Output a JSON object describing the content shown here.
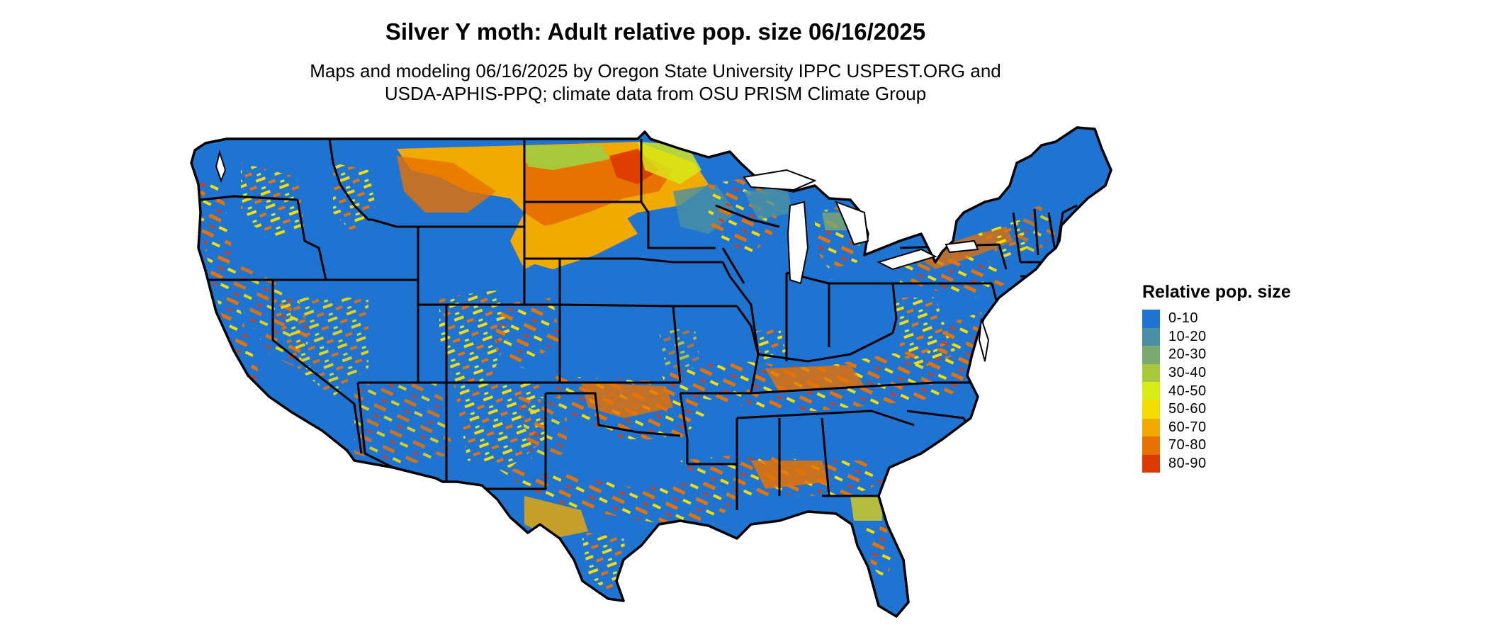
{
  "header": {
    "title": "Silver Y moth: Adult relative pop. size 06/16/2025",
    "subtitle_line1": "Maps and modeling 06/16/2025 by Oregon State University IPPC USPEST.ORG and",
    "subtitle_line2": "USDA-APHIS-PPQ; climate data from OSU PRISM Climate Group"
  },
  "legend": {
    "title": "Relative pop. size",
    "items": [
      {
        "label": "0-10",
        "color": "#1e74d0"
      },
      {
        "label": "10-20",
        "color": "#4a8fa4"
      },
      {
        "label": "20-30",
        "color": "#7aaa70"
      },
      {
        "label": "30-40",
        "color": "#a8c83c"
      },
      {
        "label": "40-50",
        "color": "#d8ec1a"
      },
      {
        "label": "50-60",
        "color": "#f5dd00"
      },
      {
        "label": "60-70",
        "color": "#f0aa00"
      },
      {
        "label": "70-80",
        "color": "#e87200"
      },
      {
        "label": "80-90",
        "color": "#dd3a00"
      }
    ]
  },
  "map": {
    "base_class_color": "#1e74d0",
    "border_color": "#000000"
  }
}
